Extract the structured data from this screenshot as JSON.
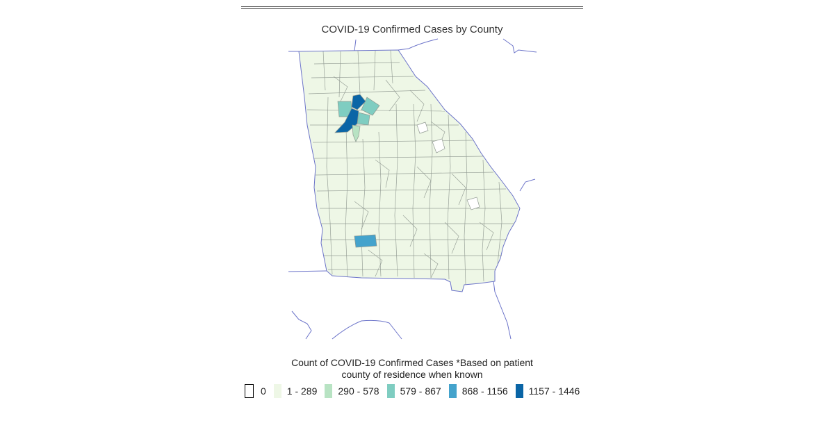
{
  "map": {
    "title": "COVID-19 Confirmed Cases by County",
    "region": "Georgia",
    "colors": {
      "zero": "#ffffff",
      "level1": "#eef7e6",
      "level2": "#b8e3c3",
      "level3": "#7fcdc1",
      "level4": "#44a3cc",
      "level5": "#0a65a6",
      "county_border": "#8f9890",
      "state_border": "#6b73c9"
    }
  },
  "legend": {
    "title_line1": "Count of COVID-19 Confirmed Cases *Based on patient",
    "title_line2": "county of residence when known",
    "items": [
      {
        "label": "0",
        "color": "#ffffff"
      },
      {
        "label": "1 - 289",
        "color": "#eef7e6"
      },
      {
        "label": "290 - 578",
        "color": "#b8e3c3"
      },
      {
        "label": "579 - 867",
        "color": "#7fcdc1"
      },
      {
        "label": "868 - 1156",
        "color": "#44a3cc"
      },
      {
        "label": "1157 - 1446",
        "color": "#0a65a6"
      }
    ]
  }
}
